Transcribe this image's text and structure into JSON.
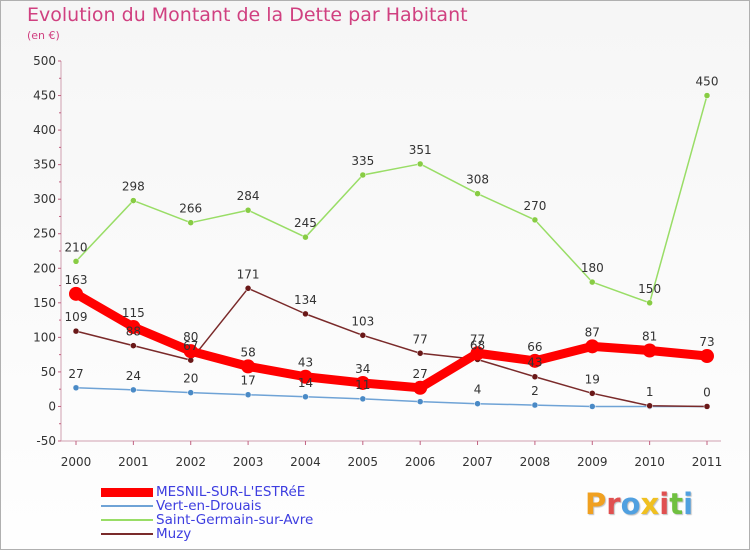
{
  "chart_data": {
    "type": "line",
    "title": "Evolution du Montant de la Dette par Habitant",
    "subtitle": "(en €)",
    "xlabel": "",
    "ylabel": "",
    "ylim": [
      -50,
      500
    ],
    "yticks": [
      "-50",
      "0",
      "50",
      "100",
      "150",
      "200",
      "250",
      "300",
      "350",
      "400",
      "450",
      "500"
    ],
    "x": [
      "2000",
      "2001",
      "2002",
      "2003",
      "2004",
      "2005",
      "2006",
      "2007",
      "2008",
      "2009",
      "2010",
      "2011"
    ],
    "legend_position": "bottom-left",
    "series": [
      {
        "name": "MESNIL-SUR-L'ESTRéE",
        "color": "#ff0000",
        "values": [
          163,
          115,
          80,
          58,
          43,
          34,
          27,
          77,
          66,
          87,
          81,
          73
        ],
        "labels": [
          "163",
          "115",
          "80",
          "58",
          "43",
          "34",
          "27",
          "77",
          "66",
          "87",
          "81",
          "73"
        ]
      },
      {
        "name": "Vert-en-Drouais",
        "color": "#6fa3d6",
        "values": [
          27,
          24,
          20,
          17,
          14,
          11,
          7,
          4,
          2,
          0,
          0,
          0
        ],
        "labels": [
          "27",
          "24",
          "20",
          "17",
          "14",
          "11",
          "",
          "4",
          "2",
          "",
          "",
          ""
        ]
      },
      {
        "name": "Saint-Germain-sur-Avre",
        "color": "#99dd66",
        "values": [
          210,
          298,
          266,
          284,
          245,
          335,
          351,
          308,
          270,
          180,
          150,
          450
        ],
        "labels": [
          "210",
          "298",
          "266",
          "284",
          "245",
          "335",
          "351",
          "308",
          "270",
          "180",
          "150",
          "450"
        ]
      },
      {
        "name": "Muzy",
        "color": "#7a2a2a",
        "values": [
          109,
          88,
          67,
          171,
          134,
          103,
          77,
          68,
          43,
          19,
          1,
          0
        ],
        "labels": [
          "109",
          "88",
          "67",
          "171",
          "134",
          "103",
          "77",
          "68",
          "43",
          "19",
          "1",
          "0"
        ]
      }
    ]
  },
  "logo": {
    "letters": [
      "P",
      "r",
      "o",
      "x",
      "i",
      "t",
      "i"
    ],
    "colors": [
      "#f0a020",
      "#e05050",
      "#50a0e0",
      "#f0c020",
      "#e05050",
      "#70c040",
      "#50a0e0"
    ]
  }
}
